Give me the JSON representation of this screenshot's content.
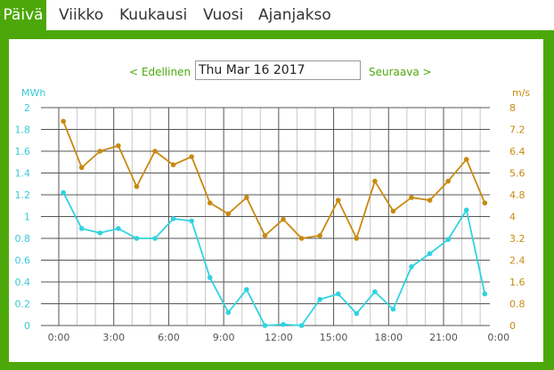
{
  "tabs": [
    {
      "label": "Päivä",
      "active": true
    },
    {
      "label": "Viikko",
      "active": false
    },
    {
      "label": "Kuukausi",
      "active": false
    },
    {
      "label": "Vuosi",
      "active": false
    },
    {
      "label": "Ajanjakso",
      "active": false
    }
  ],
  "nav": {
    "prev_label": "< Edellinen",
    "next_label": "Seuraava >",
    "date_value": "Thu Mar 16 2017"
  },
  "colors": {
    "accent": "#4ca80a",
    "energy": "#2fd3e0",
    "wind": "#c88a10"
  },
  "chart_data": {
    "type": "line",
    "left_unit": "MWh",
    "right_unit": "m/s",
    "x_tick_labels": [
      "0:00",
      "3:00",
      "6:00",
      "9:00",
      "12:00",
      "15:00",
      "18:00",
      "21:00",
      "0:00"
    ],
    "y_left_ticks": [
      "0",
      "0.2",
      "0.4",
      "0.6",
      "0.8",
      "1",
      "1.2",
      "1.4",
      "1.6",
      "1.8",
      "2"
    ],
    "y_right_ticks": [
      "0",
      "0.8",
      "1.6",
      "2.4",
      "3.2",
      "4",
      "4.8",
      "5.6",
      "6.4",
      "7.2",
      "8"
    ],
    "ylim_left": [
      0,
      2
    ],
    "ylim_right": [
      0,
      8
    ],
    "x_hours": [
      0.25,
      1.25,
      2.25,
      3.25,
      4.25,
      5.25,
      6.25,
      7.25,
      8.25,
      9.25,
      10.25,
      11.25,
      12.25,
      13.25,
      14.25,
      15.25,
      16.25,
      17.25,
      18.25,
      19.25,
      20.25,
      21.25,
      22.25,
      23.25
    ],
    "series": [
      {
        "axis": "left",
        "values": [
          1.22,
          0.89,
          0.85,
          0.89,
          0.8,
          0.8,
          0.98,
          0.96,
          0.44,
          0.12,
          0.33,
          0.0,
          0.01,
          0.0,
          0.24,
          0.29,
          0.11,
          0.31,
          0.15,
          0.54,
          0.66,
          0.79,
          1.06,
          0.29
        ]
      },
      {
        "axis": "right",
        "values": [
          7.5,
          5.8,
          6.4,
          6.6,
          5.1,
          6.4,
          5.9,
          6.2,
          4.5,
          4.1,
          4.7,
          3.3,
          3.9,
          3.2,
          3.3,
          4.6,
          3.2,
          5.3,
          4.2,
          4.7,
          4.6,
          5.3,
          6.1,
          4.5
        ]
      }
    ]
  }
}
